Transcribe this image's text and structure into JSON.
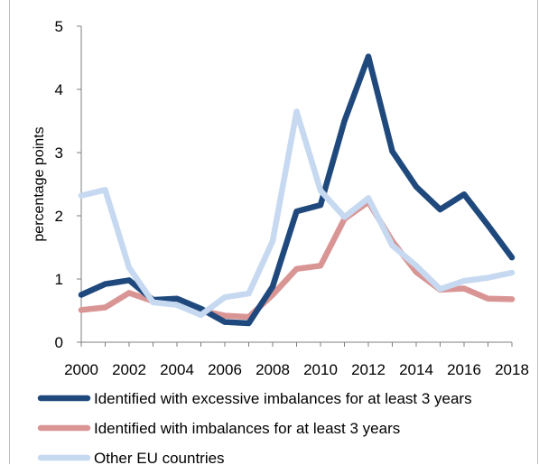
{
  "chart_data": {
    "type": "line",
    "title": "",
    "xlabel": "",
    "ylabel": "percentage points",
    "x": [
      2000,
      2001,
      2002,
      2003,
      2004,
      2005,
      2006,
      2007,
      2008,
      2009,
      2010,
      2011,
      2012,
      2013,
      2014,
      2015,
      2016,
      2017,
      2018
    ],
    "xticks": [
      2000,
      2002,
      2004,
      2006,
      2008,
      2010,
      2012,
      2014,
      2016,
      2018
    ],
    "ylim": [
      0,
      5
    ],
    "yticks": [
      0,
      1,
      2,
      3,
      4,
      5
    ],
    "grid": false,
    "legend_position": "bottom",
    "series": [
      {
        "name": "Identified with excessive imbalances for at least 3 years",
        "color": "#1f497d",
        "values": [
          0.75,
          0.92,
          0.98,
          0.67,
          0.69,
          0.53,
          0.32,
          0.3,
          0.88,
          2.07,
          2.17,
          3.5,
          4.52,
          3.02,
          2.46,
          2.1,
          2.34,
          1.85,
          1.34
        ]
      },
      {
        "name": "Identified with imbalances for at least 3 years",
        "color": "#d99594",
        "values": [
          0.51,
          0.55,
          0.78,
          0.65,
          0.63,
          0.5,
          0.42,
          0.4,
          0.75,
          1.16,
          1.21,
          1.95,
          2.22,
          1.6,
          1.11,
          0.83,
          0.85,
          0.69,
          0.68
        ]
      },
      {
        "name": "Other EU countries",
        "color": "#c6d9f1",
        "values": [
          2.32,
          2.41,
          1.18,
          0.63,
          0.59,
          0.43,
          0.71,
          0.77,
          1.6,
          3.65,
          2.4,
          1.98,
          2.28,
          1.53,
          1.21,
          0.84,
          0.97,
          1.02,
          1.1
        ]
      }
    ]
  }
}
